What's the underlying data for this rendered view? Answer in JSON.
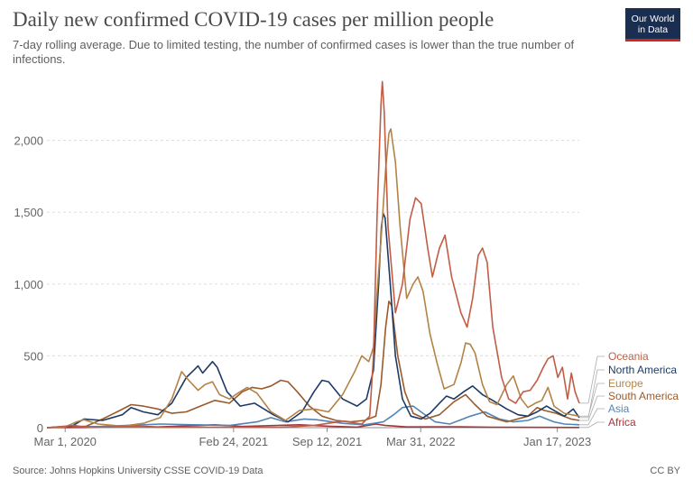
{
  "header": {
    "title": "Daily new confirmed COVID-19 cases per million people",
    "subtitle": "7-day rolling average. Due to limited testing, the number of confirmed cases is lower than the true number of infections.",
    "logo_line1": "Our World",
    "logo_line2": "in Data"
  },
  "footer": {
    "source": "Source: Johns Hopkins University CSSE COVID-19 Data",
    "license": "CC BY"
  },
  "colors": {
    "Oceania": "#c15d45",
    "North America": "#1d3a66",
    "Europe": "#b38246",
    "South America": "#9a5a2b",
    "Asia": "#4f86b8",
    "Africa": "#a3353d",
    "grid": "#dddddd",
    "axis": "#8a8a8a"
  },
  "chart_data": {
    "type": "line",
    "title": "Daily new confirmed COVID-19 cases per million people",
    "xlabel": "",
    "ylabel": "",
    "ylim": [
      0,
      2450
    ],
    "xlim": [
      "2020-01-22",
      "2023-03-05"
    ],
    "y_ticks": [
      0,
      500,
      1000,
      1500,
      2000
    ],
    "y_tick_labels": [
      "0",
      "500",
      "1,000",
      "1,500",
      "2,000"
    ],
    "x_ticks": [
      "2020-03-01",
      "2021-02-24",
      "2021-09-12",
      "2022-03-31",
      "2023-01-17"
    ],
    "x_tick_labels": [
      "Mar 1, 2020",
      "Feb 24, 2021",
      "Sep 12, 2021",
      "Mar 31, 2022",
      "Jan 17, 2023"
    ],
    "grid": true,
    "legend": "right, end of lines",
    "series": [
      {
        "name": "Oceania",
        "points": [
          [
            "2020-01-22",
            0
          ],
          [
            "2020-03-20",
            15
          ],
          [
            "2020-04-15",
            3
          ],
          [
            "2020-08-01",
            8
          ],
          [
            "2020-10-01",
            2
          ],
          [
            "2021-01-01",
            3
          ],
          [
            "2021-06-01",
            2
          ],
          [
            "2021-08-15",
            15
          ],
          [
            "2021-10-15",
            45
          ],
          [
            "2021-11-25",
            25
          ],
          [
            "2021-12-12",
            80
          ],
          [
            "2021-12-20",
            500
          ],
          [
            "2021-12-28",
            1500
          ],
          [
            "2022-01-05",
            2250
          ],
          [
            "2022-01-08",
            2410
          ],
          [
            "2022-01-12",
            2200
          ],
          [
            "2022-01-20",
            1400
          ],
          [
            "2022-02-05",
            800
          ],
          [
            "2022-02-20",
            1000
          ],
          [
            "2022-03-08",
            1450
          ],
          [
            "2022-03-20",
            1600
          ],
          [
            "2022-04-01",
            1560
          ],
          [
            "2022-04-15",
            1250
          ],
          [
            "2022-04-25",
            1050
          ],
          [
            "2022-05-10",
            1250
          ],
          [
            "2022-05-22",
            1340
          ],
          [
            "2022-06-05",
            1050
          ],
          [
            "2022-06-25",
            800
          ],
          [
            "2022-07-08",
            700
          ],
          [
            "2022-07-20",
            900
          ],
          [
            "2022-08-01",
            1200
          ],
          [
            "2022-08-10",
            1250
          ],
          [
            "2022-08-20",
            1150
          ],
          [
            "2022-09-01",
            700
          ],
          [
            "2022-09-20",
            350
          ],
          [
            "2022-10-05",
            200
          ],
          [
            "2022-10-20",
            170
          ],
          [
            "2022-11-05",
            250
          ],
          [
            "2022-11-20",
            260
          ],
          [
            "2022-12-05",
            330
          ],
          [
            "2022-12-18",
            420
          ],
          [
            "2022-12-28",
            480
          ],
          [
            "2023-01-08",
            500
          ],
          [
            "2023-01-18",
            350
          ],
          [
            "2023-01-28",
            420
          ],
          [
            "2023-02-08",
            200
          ],
          [
            "2023-02-16",
            380
          ],
          [
            "2023-02-24",
            250
          ],
          [
            "2023-03-05",
            170
          ]
        ]
      },
      {
        "name": "North America",
        "points": [
          [
            "2020-01-22",
            0
          ],
          [
            "2020-03-15",
            10
          ],
          [
            "2020-04-10",
            60
          ],
          [
            "2020-05-20",
            50
          ],
          [
            "2020-07-01",
            90
          ],
          [
            "2020-07-20",
            140
          ],
          [
            "2020-08-15",
            110
          ],
          [
            "2020-09-15",
            90
          ],
          [
            "2020-10-15",
            170
          ],
          [
            "2020-11-15",
            350
          ],
          [
            "2020-12-01",
            400
          ],
          [
            "2020-12-10",
            430
          ],
          [
            "2020-12-20",
            380
          ],
          [
            "2021-01-10",
            460
          ],
          [
            "2021-01-20",
            420
          ],
          [
            "2021-02-10",
            250
          ],
          [
            "2021-03-10",
            150
          ],
          [
            "2021-04-10",
            170
          ],
          [
            "2021-05-20",
            90
          ],
          [
            "2021-06-20",
            40
          ],
          [
            "2021-07-20",
            110
          ],
          [
            "2021-08-15",
            250
          ],
          [
            "2021-09-01",
            330
          ],
          [
            "2021-09-15",
            320
          ],
          [
            "2021-10-15",
            200
          ],
          [
            "2021-11-15",
            150
          ],
          [
            "2021-12-05",
            200
          ],
          [
            "2021-12-20",
            400
          ],
          [
            "2021-12-31",
            1000
          ],
          [
            "2022-01-06",
            1400
          ],
          [
            "2022-01-10",
            1490
          ],
          [
            "2022-01-14",
            1460
          ],
          [
            "2022-01-25",
            1000
          ],
          [
            "2022-02-05",
            500
          ],
          [
            "2022-02-20",
            200
          ],
          [
            "2022-03-10",
            80
          ],
          [
            "2022-04-01",
            60
          ],
          [
            "2022-04-20",
            100
          ],
          [
            "2022-05-10",
            170
          ],
          [
            "2022-05-25",
            220
          ],
          [
            "2022-06-10",
            200
          ],
          [
            "2022-07-01",
            250
          ],
          [
            "2022-07-20",
            290
          ],
          [
            "2022-08-10",
            230
          ],
          [
            "2022-09-01",
            190
          ],
          [
            "2022-10-01",
            130
          ],
          [
            "2022-10-25",
            90
          ],
          [
            "2022-11-15",
            80
          ],
          [
            "2022-12-05",
            110
          ],
          [
            "2022-12-25",
            150
          ],
          [
            "2023-01-10",
            120
          ],
          [
            "2023-02-01",
            80
          ],
          [
            "2023-02-20",
            130
          ],
          [
            "2023-03-05",
            70
          ]
        ]
      },
      {
        "name": "Europe",
        "points": [
          [
            "2020-01-22",
            0
          ],
          [
            "2020-03-01",
            5
          ],
          [
            "2020-03-25",
            40
          ],
          [
            "2020-04-10",
            55
          ],
          [
            "2020-05-10",
            25
          ],
          [
            "2020-07-01",
            10
          ],
          [
            "2020-08-15",
            30
          ],
          [
            "2020-09-20",
            70
          ],
          [
            "2020-10-15",
            200
          ],
          [
            "2020-11-05",
            390
          ],
          [
            "2020-11-20",
            330
          ],
          [
            "2020-12-10",
            260
          ],
          [
            "2020-12-25",
            300
          ],
          [
            "2021-01-10",
            320
          ],
          [
            "2021-01-25",
            230
          ],
          [
            "2021-02-15",
            200
          ],
          [
            "2021-03-10",
            250
          ],
          [
            "2021-03-25",
            280
          ],
          [
            "2021-04-15",
            240
          ],
          [
            "2021-05-15",
            110
          ],
          [
            "2021-06-15",
            50
          ],
          [
            "2021-07-15",
            120
          ],
          [
            "2021-08-15",
            130
          ],
          [
            "2021-09-15",
            110
          ],
          [
            "2021-10-15",
            230
          ],
          [
            "2021-11-10",
            390
          ],
          [
            "2021-11-25",
            500
          ],
          [
            "2021-12-10",
            460
          ],
          [
            "2021-12-20",
            560
          ],
          [
            "2021-12-28",
            950
          ],
          [
            "2022-01-05",
            1300
          ],
          [
            "2022-01-15",
            1800
          ],
          [
            "2022-01-22",
            2050
          ],
          [
            "2022-01-26",
            2080
          ],
          [
            "2022-02-05",
            1850
          ],
          [
            "2022-02-15",
            1400
          ],
          [
            "2022-03-01",
            900
          ],
          [
            "2022-03-15",
            1000
          ],
          [
            "2022-03-25",
            1050
          ],
          [
            "2022-04-05",
            950
          ],
          [
            "2022-04-20",
            650
          ],
          [
            "2022-05-05",
            450
          ],
          [
            "2022-05-20",
            270
          ],
          [
            "2022-06-10",
            300
          ],
          [
            "2022-06-25",
            450
          ],
          [
            "2022-07-05",
            590
          ],
          [
            "2022-07-15",
            580
          ],
          [
            "2022-07-25",
            520
          ],
          [
            "2022-08-10",
            300
          ],
          [
            "2022-08-25",
            180
          ],
          [
            "2022-09-10",
            160
          ],
          [
            "2022-10-01",
            300
          ],
          [
            "2022-10-15",
            360
          ],
          [
            "2022-11-01",
            200
          ],
          [
            "2022-11-15",
            140
          ],
          [
            "2022-12-01",
            170
          ],
          [
            "2022-12-15",
            190
          ],
          [
            "2022-12-28",
            280
          ],
          [
            "2023-01-10",
            150
          ],
          [
            "2023-02-01",
            100
          ],
          [
            "2023-03-05",
            80
          ]
        ]
      },
      {
        "name": "South America",
        "points": [
          [
            "2020-01-22",
            0
          ],
          [
            "2020-04-15",
            10
          ],
          [
            "2020-05-20",
            60
          ],
          [
            "2020-06-20",
            110
          ],
          [
            "2020-07-20",
            160
          ],
          [
            "2020-08-15",
            150
          ],
          [
            "2020-09-15",
            130
          ],
          [
            "2020-10-15",
            100
          ],
          [
            "2020-11-15",
            110
          ],
          [
            "2020-12-15",
            150
          ],
          [
            "2021-01-15",
            190
          ],
          [
            "2021-02-15",
            170
          ],
          [
            "2021-03-15",
            250
          ],
          [
            "2021-04-05",
            280
          ],
          [
            "2021-04-25",
            270
          ],
          [
            "2021-05-15",
            290
          ],
          [
            "2021-06-05",
            330
          ],
          [
            "2021-06-20",
            320
          ],
          [
            "2021-07-10",
            250
          ],
          [
            "2021-08-05",
            150
          ],
          [
            "2021-09-01",
            80
          ],
          [
            "2021-10-01",
            50
          ],
          [
            "2021-11-01",
            40
          ],
          [
            "2021-12-01",
            50
          ],
          [
            "2021-12-25",
            80
          ],
          [
            "2022-01-05",
            300
          ],
          [
            "2022-01-15",
            700
          ],
          [
            "2022-01-22",
            880
          ],
          [
            "2022-01-28",
            850
          ],
          [
            "2022-02-10",
            500
          ],
          [
            "2022-02-25",
            250
          ],
          [
            "2022-03-15",
            100
          ],
          [
            "2022-04-10",
            60
          ],
          [
            "2022-05-10",
            90
          ],
          [
            "2022-06-10",
            180
          ],
          [
            "2022-07-05",
            230
          ],
          [
            "2022-07-25",
            160
          ],
          [
            "2022-08-20",
            80
          ],
          [
            "2022-10-01",
            40
          ],
          [
            "2022-11-15",
            80
          ],
          [
            "2022-12-05",
            140
          ],
          [
            "2022-12-20",
            120
          ],
          [
            "2023-01-15",
            100
          ],
          [
            "2023-02-15",
            60
          ],
          [
            "2023-03-05",
            50
          ]
        ]
      },
      {
        "name": "Asia",
        "points": [
          [
            "2020-01-22",
            0
          ],
          [
            "2020-02-15",
            5
          ],
          [
            "2020-05-15",
            8
          ],
          [
            "2020-08-15",
            20
          ],
          [
            "2020-09-20",
            25
          ],
          [
            "2020-12-01",
            20
          ],
          [
            "2021-02-15",
            15
          ],
          [
            "2021-04-15",
            40
          ],
          [
            "2021-05-15",
            70
          ],
          [
            "2021-06-15",
            40
          ],
          [
            "2021-07-25",
            60
          ],
          [
            "2021-08-20",
            55
          ],
          [
            "2021-10-15",
            30
          ],
          [
            "2021-12-01",
            20
          ],
          [
            "2022-01-10",
            40
          ],
          [
            "2022-02-01",
            90
          ],
          [
            "2022-02-20",
            140
          ],
          [
            "2022-03-15",
            150
          ],
          [
            "2022-04-05",
            100
          ],
          [
            "2022-05-01",
            40
          ],
          [
            "2022-06-01",
            25
          ],
          [
            "2022-07-15",
            80
          ],
          [
            "2022-08-15",
            110
          ],
          [
            "2022-09-15",
            60
          ],
          [
            "2022-10-15",
            40
          ],
          [
            "2022-11-15",
            50
          ],
          [
            "2022-12-10",
            80
          ],
          [
            "2022-12-25",
            60
          ],
          [
            "2023-01-10",
            40
          ],
          [
            "2023-02-01",
            25
          ],
          [
            "2023-03-05",
            20
          ]
        ]
      },
      {
        "name": "Africa",
        "points": [
          [
            "2020-01-22",
            0
          ],
          [
            "2020-04-15",
            1
          ],
          [
            "2020-07-20",
            12
          ],
          [
            "2020-09-15",
            5
          ],
          [
            "2020-12-15",
            15
          ],
          [
            "2021-01-15",
            20
          ],
          [
            "2021-03-15",
            8
          ],
          [
            "2021-07-15",
            20
          ],
          [
            "2021-09-15",
            10
          ],
          [
            "2021-11-15",
            4
          ],
          [
            "2021-12-25",
            25
          ],
          [
            "2022-01-15",
            15
          ],
          [
            "2022-03-01",
            5
          ],
          [
            "2022-06-01",
            6
          ],
          [
            "2022-09-01",
            3
          ],
          [
            "2023-01-01",
            2
          ],
          [
            "2023-03-05",
            1
          ]
        ]
      }
    ]
  }
}
